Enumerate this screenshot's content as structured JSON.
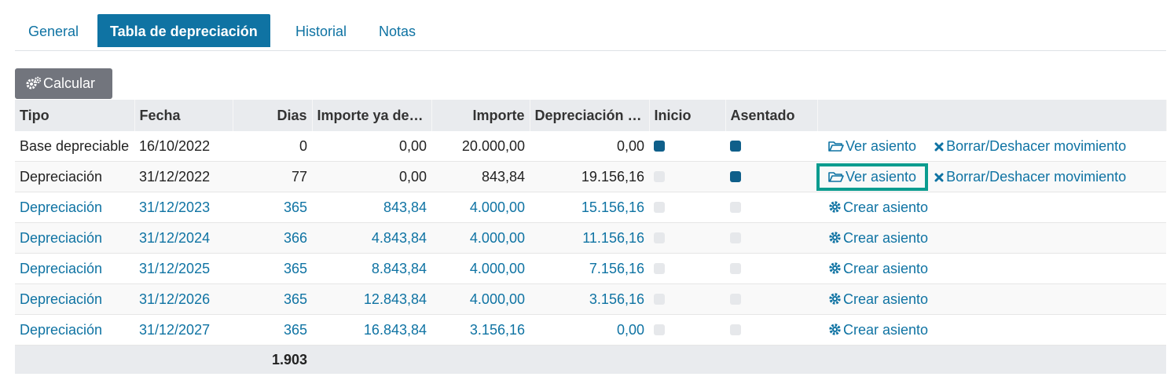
{
  "tabs": [
    {
      "label": "General",
      "active": false
    },
    {
      "label": "Tabla de depreciación",
      "active": true
    },
    {
      "label": "Historial",
      "active": false
    },
    {
      "label": "Notas",
      "active": false
    }
  ],
  "toolbar": {
    "calc_label": "Calcular"
  },
  "table": {
    "headers": [
      "Tipo",
      "Fecha",
      "Dias",
      "Importe ya de…",
      "Importe",
      "Depreciación …",
      "Inicio",
      "Asentado",
      ""
    ],
    "rows": [
      {
        "tipo": "Base depreciable",
        "fecha": "16/10/2022",
        "dias": "0",
        "importe_ya": "0,00",
        "importe": "20.000,00",
        "depreciacion": "0,00",
        "inicio": true,
        "asentado": true,
        "actions": [
          "Ver asiento",
          "Borrar/Deshacer movimiento"
        ]
      },
      {
        "tipo": "Depreciación",
        "fecha": "31/12/2022",
        "dias": "77",
        "importe_ya": "0,00",
        "importe": "843,84",
        "depreciacion": "19.156,16",
        "inicio": false,
        "asentado": true,
        "actions": [
          "Ver asiento",
          "Borrar/Deshacer movimiento"
        ]
      },
      {
        "tipo": "Depreciación",
        "fecha": "31/12/2023",
        "dias": "365",
        "importe_ya": "843,84",
        "importe": "4.000,00",
        "depreciacion": "15.156,16",
        "inicio": false,
        "asentado": false,
        "actions": [
          "Crear asiento"
        ]
      },
      {
        "tipo": "Depreciación",
        "fecha": "31/12/2024",
        "dias": "366",
        "importe_ya": "4.843,84",
        "importe": "4.000,00",
        "depreciacion": "11.156,16",
        "inicio": false,
        "asentado": false,
        "actions": [
          "Crear asiento"
        ]
      },
      {
        "tipo": "Depreciación",
        "fecha": "31/12/2025",
        "dias": "365",
        "importe_ya": "8.843,84",
        "importe": "4.000,00",
        "depreciacion": "7.156,16",
        "inicio": false,
        "asentado": false,
        "actions": [
          "Crear asiento"
        ]
      },
      {
        "tipo": "Depreciación",
        "fecha": "31/12/2026",
        "dias": "365",
        "importe_ya": "12.843,84",
        "importe": "4.000,00",
        "depreciacion": "3.156,16",
        "inicio": false,
        "asentado": false,
        "actions": [
          "Crear asiento"
        ]
      },
      {
        "tipo": "Depreciación",
        "fecha": "31/12/2027",
        "dias": "365",
        "importe_ya": "16.843,84",
        "importe": "3.156,16",
        "depreciacion": "0,00",
        "inicio": false,
        "asentado": false,
        "actions": [
          "Crear asiento"
        ]
      }
    ],
    "total_dias": "1.903"
  },
  "colors": {
    "accent": "#0f73a3",
    "checkbox_on": "#0f5f8a",
    "highlight": "#0b9c8f",
    "button_gray": "#72757d"
  }
}
